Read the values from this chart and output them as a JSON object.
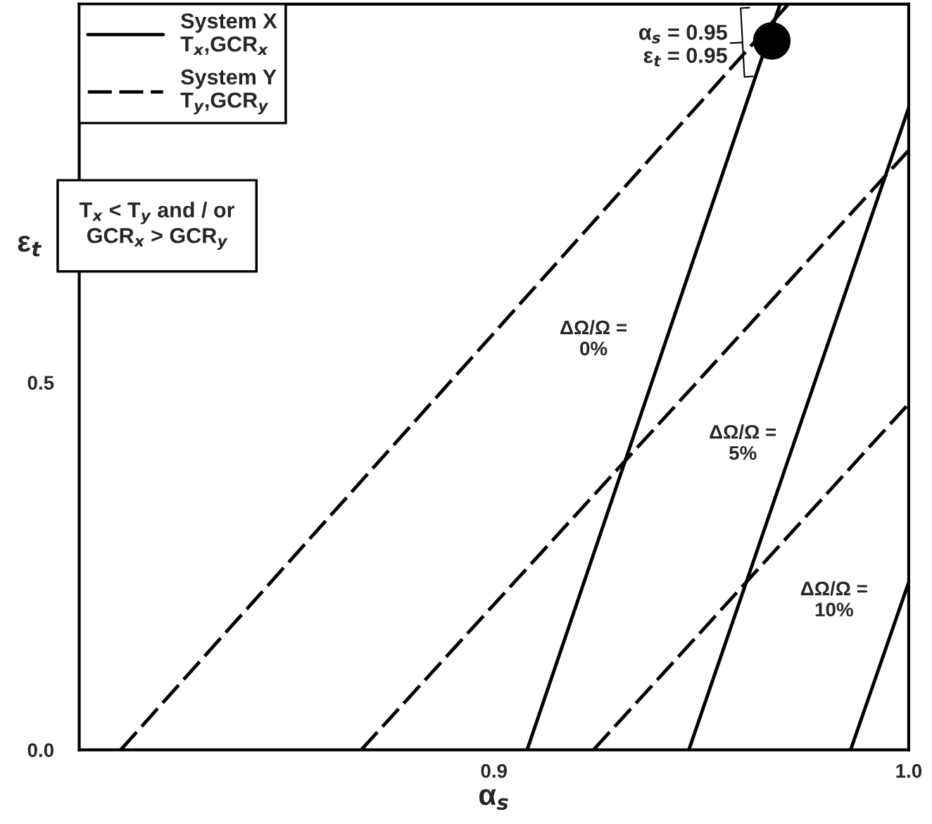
{
  "chart_data": {
    "type": "line",
    "xlabel": "α$_{s}$",
    "ylabel": "ε$_{t}$",
    "xlim": [
      0.8,
      1.0
    ],
    "ylim": [
      0.0,
      1.015
    ],
    "xticks": [
      0.9,
      {
        "value": 1.0,
        "label": "1.0"
      }
    ],
    "yticks": [
      {
        "value": 0.0,
        "label": "0.0"
      },
      0.5
    ],
    "grid": false,
    "legend": "top left",
    "marker": "none",
    "series": [
      {
        "name": "System X\nT$_{x}$,GCR$_{x}$",
        "color": "#000000",
        "line_style": "solid",
        "x": [
          0.908,
          0.969
        ],
        "values": [
          0.0,
          1.015
        ]
      },
      {
        "color": "#000000",
        "line_style": "solid",
        "x": [
          0.947,
          1.0
        ],
        "values": [
          0.0,
          0.874
        ]
      },
      {
        "color": "#000000",
        "line_style": "solid",
        "x": [
          0.986,
          1.0
        ],
        "values": [
          0.0,
          0.228
        ]
      },
      {
        "name": "System Y\nT$_{y}$,GCR$_{y}$",
        "color": "#000000",
        "line_style": "dashed",
        "x": [
          0.81,
          0.971
        ],
        "values": [
          0.0,
          1.015
        ]
      },
      {
        "color": "#000000",
        "line_style": "dashed",
        "x": [
          0.868,
          1.0
        ],
        "values": [
          0.0,
          0.816
        ]
      },
      {
        "color": "#000000",
        "line_style": "dashed",
        "x": [
          0.924,
          1.0
        ],
        "values": [
          0.0,
          0.471
        ]
      },
      {
        "type": "scatter",
        "marker": "circle",
        "color": "#000000",
        "x": [
          0.967
        ],
        "values": [
          0.965
        ]
      }
    ],
    "annotations": [
      {
        "text": "α$_{s}$ = 0.95\nε$_{t}$ = 0.95",
        "x": 0.967,
        "y": 0.965
      },
      "T$_{x}$ < T$_{y}$ and / or\nGCR$_{x}$ > GCR$_{y}$",
      "ΔΩ/Ω =\n0%",
      "ΔΩ/Ω =\n5%",
      "ΔΩ/Ω =\n10%"
    ]
  }
}
